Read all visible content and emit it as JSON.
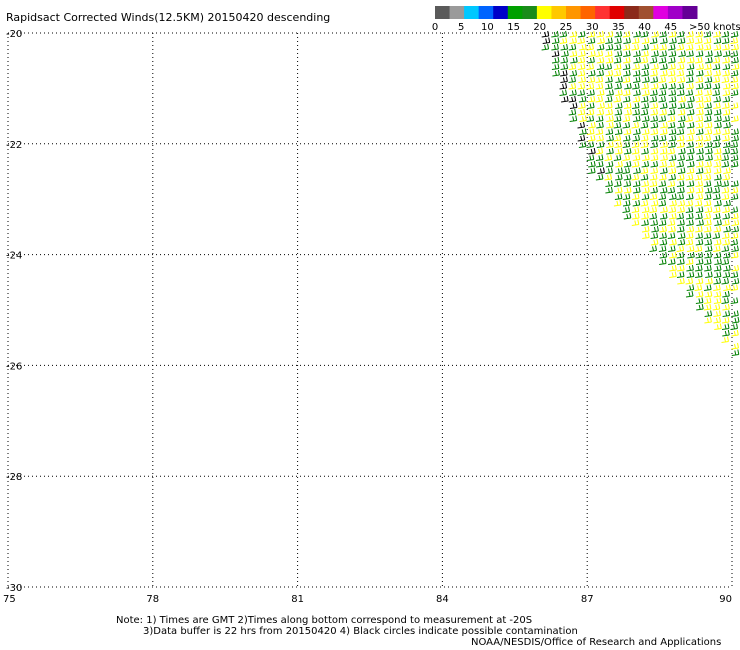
{
  "chart_data": {
    "type": "wind-barb-map",
    "title": "Rapidsact Corrected Winds(12.5KM) 20150420 descending",
    "x": {
      "ticks": [
        "75",
        "78",
        "81",
        "84",
        "87",
        "90"
      ],
      "range": [
        75,
        90
      ]
    },
    "y": {
      "ticks": [
        "-20",
        "-22",
        "-24",
        "-26",
        "-28",
        "-30"
      ],
      "range": [
        -30,
        -20
      ]
    },
    "grid": true,
    "colorbar": {
      "labels": [
        "0",
        "5",
        "10",
        "15",
        "20",
        "25",
        "30",
        "35",
        "40",
        "45",
        ">50 knots"
      ],
      "colors": [
        "#5a5a5a",
        "#9a9a9a",
        "#00c8ff",
        "#0064ff",
        "#0000c8",
        "#00a000",
        "#1a8c1a",
        "#ffff00",
        "#ffc800",
        "#ff9600",
        "#ff6400",
        "#ff3232",
        "#e00000",
        "#8b2a1a",
        "#a05030",
        "#e000e0",
        "#a000c8",
        "#640096"
      ]
    },
    "swath": {
      "description_points": [
        [
          85.9,
          -20
        ],
        [
          90,
          -20
        ],
        [
          90,
          -25.9
        ],
        [
          87.0,
          -22.5
        ]
      ],
      "barb_colors": {
        "green": "#008000",
        "yellow": "#ffff00",
        "black": "#000000"
      }
    }
  },
  "notes": {
    "line1": "Note: 1) Times are GMT 2)Times along bottom correspond to measurement at -20S",
    "line2": "3)Data buffer is 22 hrs from 20150420 4) Black circles indicate possible contamination",
    "line3": "NOAA/NESDIS/Office of Research and Applications"
  }
}
